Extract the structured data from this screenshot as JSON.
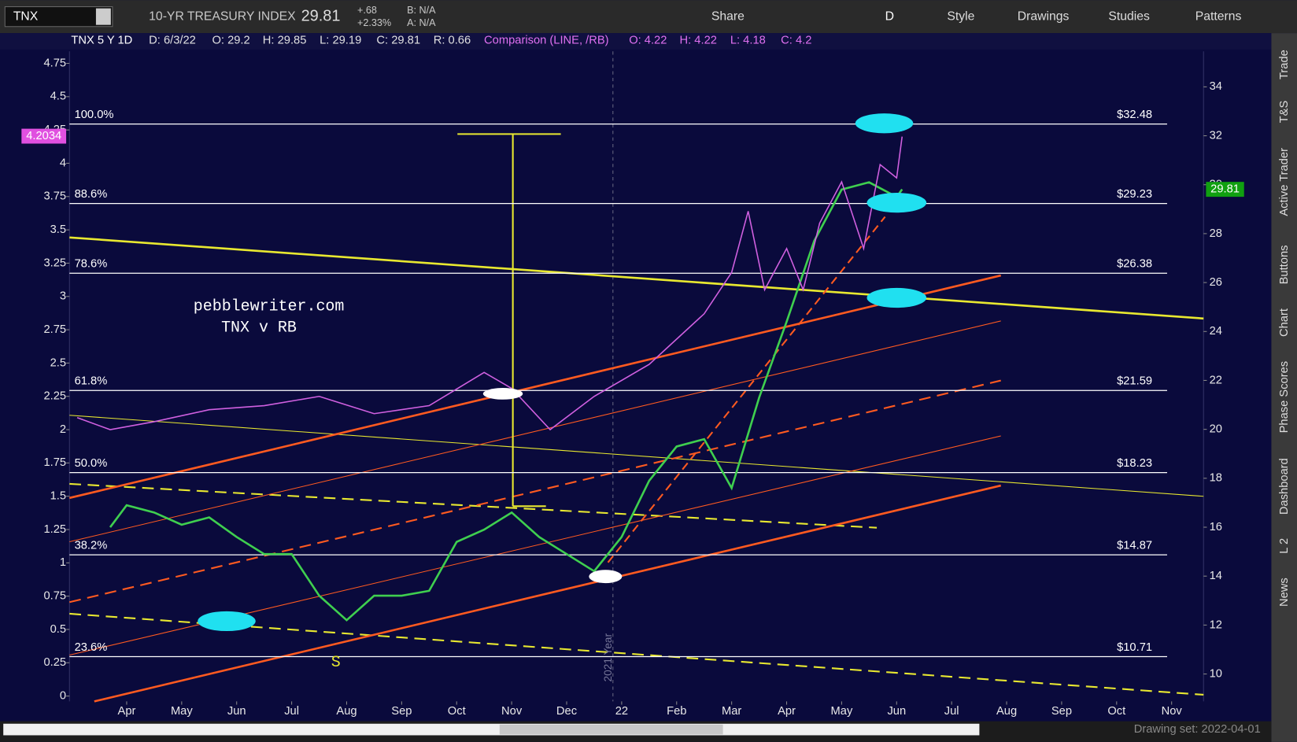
{
  "toolbar": {
    "symbol": "TNX",
    "description": "10-YR TREASURY INDEX",
    "last": "29.81",
    "change": "+.68",
    "change_pct": "+2.33%",
    "bid": "B: N/A",
    "ask": "A: N/A",
    "aggregation": "D",
    "buttons": [
      "Share",
      "Style",
      "Drawings",
      "Studies",
      "Patterns"
    ]
  },
  "info_bar": {
    "symbol": "TNX 5 Y 1D",
    "fields": [
      "D: 6/3/22",
      "O: 29.2",
      "H: 29.85",
      "L: 29.19",
      "C: 29.81",
      "R: 0.66"
    ],
    "comparison": "Comparison (LINE, /RB)",
    "comparison_fields": [
      "O: 4.22",
      "H: 4.22",
      "L: 4.18",
      "C: 4.2"
    ]
  },
  "chart_data": {
    "type": "line",
    "xlim": [
      -0.04,
      20.58
    ],
    "xticks": [
      {
        "value": 1,
        "label": "Apr"
      },
      {
        "value": 2,
        "label": "May"
      },
      {
        "value": 3,
        "label": "Jun"
      },
      {
        "value": 4,
        "label": "Jul"
      },
      {
        "value": 5,
        "label": "Aug"
      },
      {
        "value": 6,
        "label": "Sep"
      },
      {
        "value": 7,
        "label": "Oct"
      },
      {
        "value": 8,
        "label": "Nov"
      },
      {
        "value": 9,
        "label": "Dec"
      },
      {
        "value": 10,
        "label": "22"
      },
      {
        "value": 11,
        "label": "Feb"
      },
      {
        "value": 12,
        "label": "Mar"
      },
      {
        "value": 13,
        "label": "Apr"
      },
      {
        "value": 14,
        "label": "May"
      },
      {
        "value": 15,
        "label": "Jun"
      },
      {
        "value": 16,
        "label": "Jul"
      },
      {
        "value": 17,
        "label": "Aug"
      },
      {
        "value": 18,
        "label": "Sep"
      },
      {
        "value": 19,
        "label": "Oct"
      },
      {
        "value": 20,
        "label": "Nov"
      }
    ],
    "ylim": [
      -0.04,
      4.84
    ],
    "yticks": [
      0,
      0.25,
      0.5,
      0.75,
      1,
      1.25,
      1.5,
      1.75,
      2,
      2.25,
      2.5,
      2.75,
      3,
      3.25,
      3.5,
      3.75,
      4,
      4.25,
      4.5,
      4.75
    ],
    "y2lim": [
      8.88,
      35.45
    ],
    "y2ticks": [
      10,
      12,
      14,
      16,
      18,
      20,
      22,
      24,
      26,
      28,
      30,
      32,
      34
    ],
    "series": [
      {
        "color": "#3fcf4f",
        "axis": "y2",
        "x": [
          0.7,
          1,
          1.5,
          2,
          2.5,
          3,
          3.5,
          4,
          4.5,
          5,
          5.5,
          6,
          6.5,
          7,
          7.5,
          8,
          8.5,
          9,
          9.5,
          10,
          10.5,
          11,
          11.5,
          12,
          12.5,
          13,
          13.5,
          14,
          14.5,
          15,
          15.1
        ],
        "values": [
          16,
          16.9,
          16.6,
          16.1,
          16.4,
          15.6,
          14.9,
          14.9,
          13.2,
          12.2,
          13.2,
          13.2,
          13.4,
          15.4,
          15.9,
          16.6,
          15.6,
          14.9,
          14.2,
          15.6,
          17.9,
          19.3,
          19.6,
          17.6,
          21.3,
          24.4,
          27.7,
          29.8,
          30.1,
          29.5,
          29.81
        ]
      },
      {
        "color": "#d060e0",
        "x": [
          0.1,
          0.7,
          1.5,
          2.5,
          3.5,
          4.5,
          5.5,
          6.5,
          7.5,
          8,
          8.7,
          9.5,
          10.5,
          11.5,
          12,
          12.3,
          12.6,
          13,
          13.3,
          13.6,
          14,
          14.4,
          14.7,
          15,
          15.1
        ],
        "values": [
          2.09,
          2,
          2.06,
          2.15,
          2.18,
          2.25,
          2.12,
          2.18,
          2.43,
          2.31,
          2,
          2.25,
          2.49,
          2.87,
          3.18,
          3.64,
          3.05,
          3.36,
          3.05,
          3.55,
          3.86,
          3.36,
          3.99,
          3.89,
          4.2
        ]
      }
    ],
    "price_badge": 29.81,
    "comparison_badge": 4.2034,
    "fib_levels": [
      {
        "label": "100.0%",
        "value": 32.48,
        "value_label": "$32.48"
      },
      {
        "label": "88.6%",
        "value": 29.23,
        "value_label": "$29.23"
      },
      {
        "label": "78.6%",
        "value": 26.38,
        "value_label": "$26.38"
      },
      {
        "label": "61.8%",
        "value": 21.59,
        "value_label": "$21.59"
      },
      {
        "label": "50.0%",
        "value": 18.23,
        "value_label": "$18.23"
      },
      {
        "label": "38.2%",
        "value": 14.87,
        "value_label": "$14.87"
      },
      {
        "label": "23.6%",
        "value": 10.71,
        "value_label": "$10.71"
      }
    ],
    "watermark": [
      "pebblewriter.com",
      "TNX v RB"
    ],
    "annotations": [
      "S",
      "2021 Year"
    ]
  },
  "side_tabs": [
    "Trade",
    "T&S",
    "Active Trader",
    "Buttons",
    "Chart",
    "Phase Scores",
    "Dashboard",
    "L 2",
    "News"
  ],
  "footer": {
    "drawing_set": "Drawing set: 2022-04-01"
  }
}
